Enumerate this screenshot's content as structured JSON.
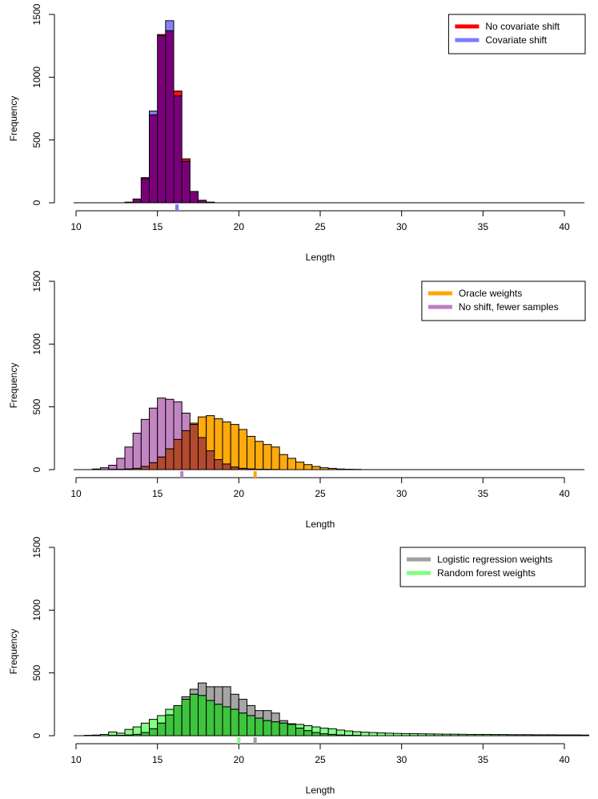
{
  "chart_data": [
    {
      "type": "histogram",
      "xlabel": "Length",
      "ylabel": "Frequency",
      "xlim": [
        10,
        41
      ],
      "ylim": [
        0,
        1500
      ],
      "x_ticks": [
        "10",
        "15",
        "20",
        "25",
        "30",
        "35",
        "40"
      ],
      "y_ticks": [
        "0",
        "500",
        "1000",
        "1500"
      ],
      "bin_width": 0.5,
      "legend_position": "top-right",
      "series": [
        {
          "name": "No covariate shift",
          "color": "#ff0000",
          "bin_start": 13.0,
          "values": [
            5,
            30,
            200,
            700,
            1340,
            1370,
            890,
            350,
            90,
            20,
            5
          ],
          "mean_marker": 16.2
        },
        {
          "name": "Covariate shift",
          "color": "#7b7bff",
          "bin_start": 13.0,
          "values": [
            5,
            30,
            190,
            730,
            1330,
            1450,
            850,
            330,
            90,
            20,
            5
          ],
          "mean_marker": 16.2
        }
      ]
    },
    {
      "type": "histogram",
      "xlabel": "Length",
      "ylabel": "Frequency",
      "xlim": [
        10,
        41
      ],
      "ylim": [
        0,
        1500
      ],
      "x_ticks": [
        "10",
        "15",
        "20",
        "25",
        "30",
        "35",
        "40"
      ],
      "y_ticks": [
        "0",
        "500",
        "1000",
        "1500"
      ],
      "bin_width": 0.5,
      "legend_position": "top-right",
      "series": [
        {
          "name": "Oracle weights",
          "color": "#ffa500",
          "bin_start": 11.0,
          "values": [
            0,
            0,
            2,
            3,
            5,
            10,
            25,
            55,
            100,
            165,
            240,
            310,
            370,
            420,
            430,
            405,
            380,
            360,
            320,
            265,
            225,
            200,
            180,
            120,
            90,
            60,
            40,
            25,
            15,
            10,
            5,
            3,
            2
          ],
          "mean_marker": 21.0
        },
        {
          "name": "No shift, fewer samples",
          "color": "#bf7fbf",
          "bin_start": 11.0,
          "values": [
            5,
            15,
            35,
            90,
            180,
            290,
            400,
            490,
            570,
            560,
            540,
            450,
            360,
            255,
            150,
            80,
            45,
            20,
            10,
            5,
            3,
            2,
            1
          ],
          "mean_marker": 16.5
        }
      ]
    },
    {
      "type": "histogram",
      "xlabel": "Length",
      "ylabel": "Frequency",
      "xlim": [
        10,
        41
      ],
      "ylim": [
        0,
        1500
      ],
      "x_ticks": [
        "10",
        "15",
        "20",
        "25",
        "30",
        "35",
        "40"
      ],
      "y_ticks": [
        "0",
        "500",
        "1000",
        "1500"
      ],
      "bin_width": 0.5,
      "legend_position": "top-right",
      "series": [
        {
          "name": "Logistic regression weights",
          "color": "#a0a0a0",
          "bin_start": 11.0,
          "values": [
            0,
            0,
            2,
            3,
            5,
            10,
            25,
            55,
            100,
            165,
            240,
            310,
            370,
            420,
            390,
            390,
            390,
            330,
            290,
            240,
            200,
            200,
            180,
            120,
            90,
            60,
            40,
            25,
            15,
            10,
            5,
            3,
            2
          ],
          "mean_marker": 21.0
        },
        {
          "name": "Random forest weights",
          "color": "#7fff7f",
          "bin_start": 10.5,
          "values": [
            3,
            5,
            10,
            30,
            20,
            50,
            70,
            100,
            130,
            160,
            210,
            240,
            290,
            330,
            320,
            280,
            250,
            230,
            210,
            180,
            160,
            140,
            120,
            110,
            100,
            95,
            90,
            80,
            70,
            60,
            55,
            45,
            38,
            32,
            28,
            25,
            22,
            20,
            18,
            17,
            16,
            15,
            14,
            13,
            12,
            12,
            11,
            10,
            10,
            10,
            9,
            9,
            8,
            8,
            8,
            7,
            7,
            7,
            6,
            6,
            6,
            5
          ],
          "mean_marker": 20.0
        }
      ]
    }
  ]
}
